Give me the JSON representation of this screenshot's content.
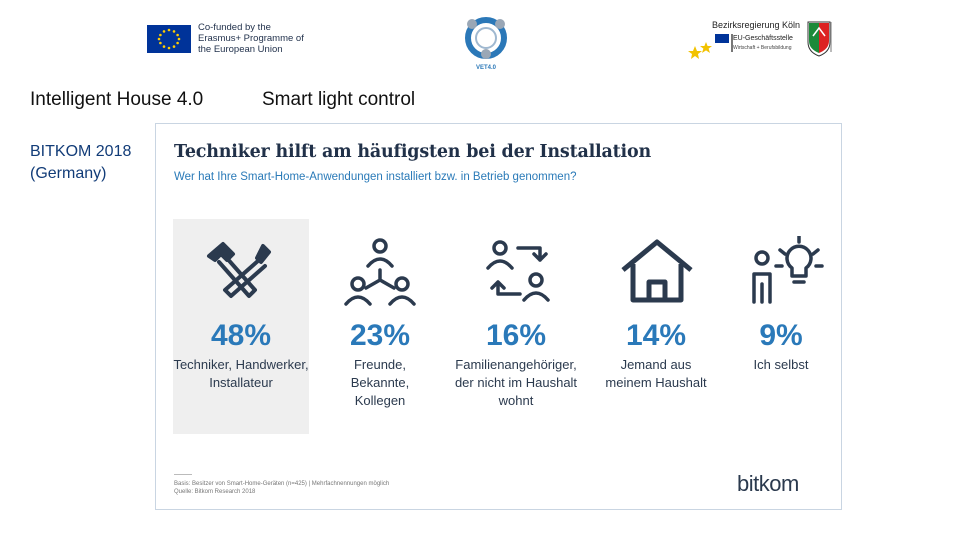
{
  "header": {
    "eu_text": "Co-funded by the Erasmus+ Programme of the European Union",
    "center_logo_text": "VET4.0",
    "regional_title": "Bezirksregierung Köln",
    "regional_sub1": "EU-Geschäftsstelle",
    "regional_sub2": "Wirtschaft + Berufsbildung"
  },
  "slide": {
    "title_left": "Intelligent House 4.0",
    "title_right": "Smart light control",
    "source": "BITKOM 2018 (Germany)"
  },
  "infographic": {
    "title": "Techniker hilft am häufigsten bei der Installation",
    "subtitle": "Wer hat Ihre Smart-Home-Anwendungen installiert bzw. in Betrieb genommen?",
    "columns": [
      {
        "percent": "48%",
        "label": "Techniker, Handwerker, Installateur",
        "icon": "tools-icon"
      },
      {
        "percent": "23%",
        "label": "Freunde, Bekannte, Kollegen",
        "icon": "people-network-icon"
      },
      {
        "percent": "16%",
        "label": "Familienangehöriger, der nicht im Haushalt wohnt",
        "icon": "family-exchange-icon"
      },
      {
        "percent": "14%",
        "label": "Jemand aus meinem Haushalt",
        "icon": "house-icon"
      },
      {
        "percent": "9%",
        "label": "Ich selbst",
        "icon": "person-idea-icon"
      }
    ],
    "footnote_line1": "Basis: Besitzer von Smart-Home-Geräten (n=425) | Mehrfachnennungen möglich",
    "footnote_line2": "Quelle: Bitkom Research 2018",
    "brand": "bitkom"
  },
  "colors": {
    "accent": "#2a79b9",
    "dark_text": "#2b3a4e",
    "source_text": "#123c78",
    "highlight_bg": "#efefef"
  }
}
